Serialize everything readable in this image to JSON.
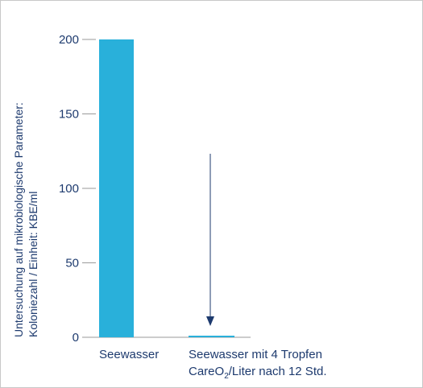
{
  "chart_data": {
    "type": "bar",
    "categories": [
      {
        "line1": "Seewasser",
        "line2": ""
      },
      {
        "line1": "Seewasser mit 4 Tropfen",
        "line2_pre": "CareO",
        "line2_sub": "2",
        "line2_post": "/Liter nach 12 Std."
      }
    ],
    "values": [
      200,
      1
    ],
    "ylabel": [
      "Untersuchung auf mikrobiologische Parameter:",
      "Koloniezahl / Einheit: KBE/ml"
    ],
    "yticks": [
      0,
      50,
      100,
      150,
      200
    ],
    "ylim": [
      0,
      200
    ],
    "grid": false,
    "annotation": "arrow pointing down to second bar",
    "colors": {
      "bar": "#29b0da",
      "text": "#1d3a6e",
      "axis": "#9a9a9a",
      "arrow": "#1d3a6e"
    }
  }
}
